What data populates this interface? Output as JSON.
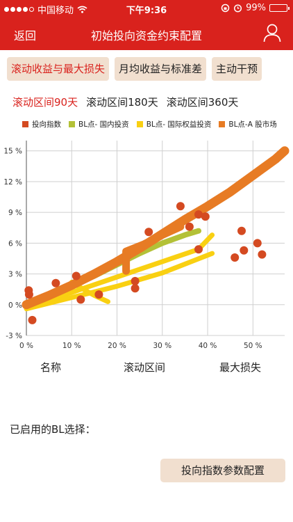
{
  "status_bar": {
    "carrier": "中国移动",
    "time": "下午9:36",
    "battery": "99%",
    "battery_level": 0.99,
    "icons": [
      "signal-dots-icon",
      "wifi-icon",
      "orientation-lock-icon",
      "alarm-icon",
      "battery-icon"
    ]
  },
  "nav": {
    "back": "返回",
    "title": "初始投向资金约束配置",
    "user_icon": "user-icon"
  },
  "tabs": [
    {
      "label": "滚动收益与最大损失",
      "active": true
    },
    {
      "label": "月均收益与标准差",
      "active": false
    },
    {
      "label": "主动干预",
      "active": false
    }
  ],
  "intervals": [
    {
      "label": "滚动区间90天",
      "active": true
    },
    {
      "label": "滚动区间180天",
      "active": false
    },
    {
      "label": "滚动区间360天",
      "active": false
    }
  ],
  "colors": {
    "brand_red": "#d9221d",
    "button_beige": "#f1dfcf",
    "series_index": "#d44a21",
    "series_domestic": "#b3c137",
    "series_international": "#f9d012",
    "series_ashare": "#e77b24"
  },
  "chart_data": {
    "type": "scatter",
    "xlim": [
      0,
      57
    ],
    "ylim": [
      -3,
      16
    ],
    "x_ticks": [
      "0 %",
      "10 %",
      "20 %",
      "30 %",
      "40 %",
      "50 %"
    ],
    "x_tick_values": [
      0,
      10,
      20,
      30,
      40,
      50
    ],
    "y_ticks": [
      "-3 %",
      "0 %",
      "3 %",
      "6 %",
      "9 %",
      "12 %",
      "15 %"
    ],
    "y_tick_values": [
      -3,
      0,
      3,
      6,
      9,
      12,
      15
    ],
    "grid": true,
    "legend_position": "top",
    "series": [
      {
        "name": "投向指数",
        "color": "#d44a21",
        "style": "points",
        "points": [
          [
            0.5,
            1.4
          ],
          [
            0.6,
            1.0
          ],
          [
            1.3,
            -1.5
          ],
          [
            6.5,
            2.1
          ],
          [
            11,
            2.8
          ],
          [
            12,
            0.5
          ],
          [
            16,
            1.0
          ],
          [
            24,
            2.3
          ],
          [
            24,
            1.6
          ],
          [
            27,
            7.1
          ],
          [
            34,
            9.6
          ],
          [
            36,
            7.6
          ],
          [
            38,
            8.8
          ],
          [
            38,
            5.4
          ],
          [
            39.5,
            8.6
          ],
          [
            46,
            4.6
          ],
          [
            47.5,
            7.2
          ],
          [
            48,
            5.3
          ],
          [
            51,
            6.0
          ],
          [
            52,
            4.9
          ]
        ]
      },
      {
        "name": "BL点- 国内投资",
        "color": "#b3c137",
        "style": "band",
        "points": [
          [
            0,
            0.0
          ],
          [
            5,
            0.9
          ],
          [
            10,
            1.8
          ],
          [
            15,
            2.8
          ],
          [
            20,
            3.9
          ],
          [
            25,
            5.0
          ],
          [
            30,
            6.0
          ],
          [
            35,
            6.8
          ],
          [
            38,
            7.2
          ]
        ]
      },
      {
        "name": "BL点- 国际权益投资",
        "color": "#f9d012",
        "style": "band",
        "lines": [
          [
            [
              0,
              -0.2
            ],
            [
              10,
              1.2
            ],
            [
              20,
              2.7
            ],
            [
              30,
              4.2
            ],
            [
              38,
              5.4
            ],
            [
              41,
              6.8
            ]
          ],
          [
            [
              0,
              -0.4
            ],
            [
              10,
              0.7
            ],
            [
              20,
              1.8
            ],
            [
              30,
              3.1
            ],
            [
              41,
              5.0
            ]
          ],
          [
            [
              10,
              2.2
            ],
            [
              13,
              1.4
            ],
            [
              15,
              0.9
            ],
            [
              17,
              0.5
            ],
            [
              18,
              0.3
            ]
          ]
        ]
      },
      {
        "name": "BL点-A 股市场",
        "color": "#e77b24",
        "style": "band",
        "points": [
          [
            0,
            0.0
          ],
          [
            5,
            0.9
          ],
          [
            10,
            1.9
          ],
          [
            15,
            3.0
          ],
          [
            20,
            4.2
          ],
          [
            25,
            5.5
          ],
          [
            30,
            6.9
          ],
          [
            35,
            8.3
          ],
          [
            40,
            9.6
          ],
          [
            45,
            11.0
          ],
          [
            50,
            12.6
          ],
          [
            55,
            14.2
          ],
          [
            57,
            15.0
          ]
        ],
        "spur": [
          [
            22,
            3.3
          ],
          [
            22,
            5.2
          ],
          [
            26,
            5.9
          ],
          [
            30,
            6.8
          ],
          [
            34,
            7.6
          ]
        ]
      }
    ]
  },
  "columns": [
    "名称",
    "滚动区间",
    "最大损失"
  ],
  "enabled_label": "已启用的BL选择：",
  "config_button": "投向指数参数配置"
}
